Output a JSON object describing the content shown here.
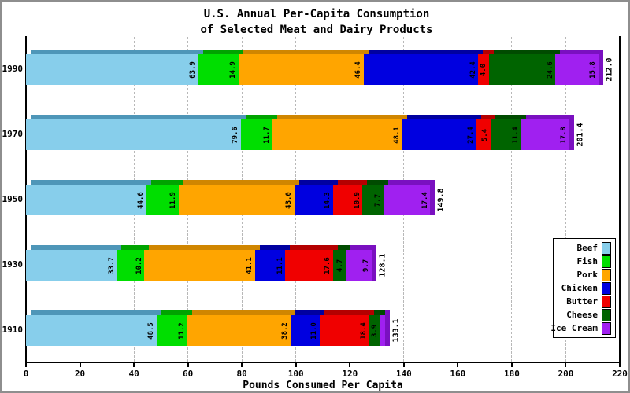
{
  "title": {
    "line1": "U.S. Annual Per-Capita Consumption",
    "line2": "of Selected Meat and Dairy Products"
  },
  "xlabel": "Pounds Consumed Per Capita",
  "chart_data": {
    "type": "bar",
    "orientation": "horizontal",
    "stacked": true,
    "title": "U.S. Annual Per-Capita Consumption of Selected Meat and Dairy Products",
    "xlabel": "Pounds Consumed Per Capita",
    "ylabel": "",
    "categories": [
      "1990",
      "1970",
      "1950",
      "1930",
      "1910"
    ],
    "series": [
      {
        "name": "Beef",
        "color": "#87CEEB",
        "dark": "#4E96B8",
        "values": [
          63.9,
          79.6,
          44.6,
          33.7,
          48.5
        ]
      },
      {
        "name": "Fish",
        "color": "#00DE00",
        "dark": "#00A300",
        "values": [
          14.9,
          11.7,
          11.9,
          10.2,
          11.2
        ]
      },
      {
        "name": "Pork",
        "color": "#FFA500",
        "dark": "#D08600",
        "values": [
          46.4,
          48.1,
          43.0,
          41.1,
          38.2
        ]
      },
      {
        "name": "Chicken",
        "color": "#0000E0",
        "dark": "#0000A0",
        "values": [
          42.4,
          27.4,
          14.3,
          11.1,
          11.0
        ]
      },
      {
        "name": "Butter",
        "color": "#F00000",
        "dark": "#B40000",
        "values": [
          4.0,
          5.4,
          10.9,
          17.6,
          18.4
        ]
      },
      {
        "name": "Cheese",
        "color": "#006400",
        "dark": "#004B00",
        "values": [
          24.6,
          11.4,
          7.7,
          4.7,
          3.9
        ]
      },
      {
        "name": "Ice Cream",
        "color": "#A020F0",
        "dark": "#7A10C0",
        "values": [
          15.8,
          17.8,
          17.4,
          9.7,
          1.9
        ]
      }
    ],
    "totals": [
      212.0,
      201.4,
      149.8,
      128.1,
      133.1
    ],
    "x_ticks": [
      0,
      20,
      40,
      60,
      80,
      100,
      120,
      140,
      160,
      180,
      200,
      220
    ],
    "xlim": [
      0,
      220
    ],
    "grid": "dashed-vertical",
    "legend_position": "right-middle",
    "legend_entries": [
      "Beef",
      "Fish",
      "Pork",
      "Chicken",
      "Butter",
      "Cheese",
      "Ice Cream"
    ]
  }
}
